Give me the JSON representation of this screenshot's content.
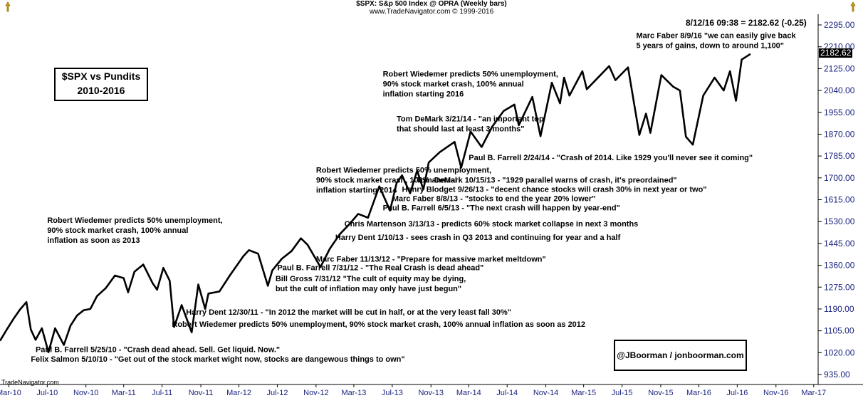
{
  "header": {
    "line1": "$SPX:  S&p 500 Index @ OPRA  (Weekly bars)",
    "line2": "www.TradeNavigator.com © 1999-2016"
  },
  "quote_line": "8/12/16 09:38 = 2182.62 (-0.25)",
  "title_box": {
    "line1": "$SPX vs Pundits",
    "line2": "2010-2016"
  },
  "credit": "@JBoorman / jonboorman.com",
  "footer": "TradeNavigator.com",
  "last_value_label": "2182.62",
  "chart_data": {
    "type": "line",
    "series": [
      {
        "x": [
          "2010-02-01",
          "2010-02-22",
          "2010-03-15",
          "2010-04-05",
          "2010-04-26",
          "2010-05-10",
          "2010-05-25",
          "2010-06-14",
          "2010-07-05",
          "2010-07-26",
          "2010-08-23",
          "2010-09-13",
          "2010-10-04",
          "2010-10-25",
          "2010-11-15",
          "2010-12-06",
          "2011-01-03",
          "2011-02-01",
          "2011-03-01",
          "2011-03-15",
          "2011-04-04",
          "2011-05-02",
          "2011-06-01",
          "2011-06-15",
          "2011-07-05",
          "2011-07-25",
          "2011-08-08",
          "2011-09-01",
          "2011-10-03",
          "2011-10-24",
          "2011-11-15",
          "2011-11-25",
          "2011-12-30",
          "2012-02-01",
          "2012-03-15",
          "2012-04-02",
          "2012-05-01",
          "2012-06-01",
          "2012-06-15",
          "2012-07-15",
          "2012-08-15",
          "2012-09-14",
          "2012-10-05",
          "2012-11-15",
          "2012-12-15",
          "2013-01-15",
          "2013-02-15",
          "2013-03-15",
          "2013-04-15",
          "2013-05-21",
          "2013-06-24",
          "2013-07-15",
          "2013-08-01",
          "2013-08-27",
          "2013-09-18",
          "2013-10-08",
          "2013-10-25",
          "2013-11-29",
          "2014-01-15",
          "2014-02-05",
          "2014-03-07",
          "2014-04-11",
          "2014-05-15",
          "2014-06-20",
          "2014-07-24",
          "2014-08-07",
          "2014-09-19",
          "2014-10-15",
          "2014-11-20",
          "2014-12-16",
          "2014-12-29",
          "2015-01-15",
          "2015-02-25",
          "2015-03-11",
          "2015-05-21",
          "2015-06-10",
          "2015-07-20",
          "2015-08-25",
          "2015-09-15",
          "2015-09-29",
          "2015-11-03",
          "2015-12-10",
          "2016-01-01",
          "2016-01-20",
          "2016-02-11",
          "2016-03-15",
          "2016-04-20",
          "2016-05-19",
          "2016-06-08",
          "2016-06-27",
          "2016-07-15",
          "2016-08-12"
        ],
        "y": [
          1066,
          1109,
          1150,
          1187,
          1217,
          1110,
          1070,
          1115,
          1022,
          1115,
          1050,
          1125,
          1165,
          1185,
          1190,
          1240,
          1271,
          1320,
          1310,
          1255,
          1335,
          1363,
          1290,
          1265,
          1350,
          1300,
          1120,
          1205,
          1099,
          1285,
          1190,
          1250,
          1258,
          1320,
          1395,
          1419,
          1405,
          1280,
          1340,
          1385,
          1415,
          1465,
          1440,
          1353,
          1425,
          1480,
          1520,
          1560,
          1545,
          1667,
          1573,
          1680,
          1710,
          1640,
          1728,
          1655,
          1760,
          1800,
          1840,
          1740,
          1880,
          1820,
          1900,
          1960,
          1985,
          1905,
          2015,
          1862,
          2070,
          1990,
          2090,
          2020,
          2115,
          2045,
          2135,
          2080,
          2130,
          1867,
          1950,
          1875,
          2100,
          2055,
          2040,
          1860,
          1829,
          2020,
          2090,
          2040,
          2115,
          2000,
          2160,
          2182
        ]
      }
    ],
    "xlim": [
      "2010-02-01",
      "2017-03-15"
    ],
    "ylim": [
      935,
      2295
    ],
    "y_ticks": [
      935,
      1020,
      1105,
      1190,
      1275,
      1360,
      1445,
      1530,
      1615,
      1700,
      1785,
      1870,
      1955,
      2040,
      2125,
      2210,
      2295
    ],
    "y_tick_labels": [
      "935.00",
      "1020.00",
      "1105.00",
      "1190.00",
      "1275.00",
      "1360.00",
      "1445.00",
      "1530.00",
      "1615.00",
      "1700.00",
      "1785.00",
      "1870.00",
      "1955.00",
      "2040.00",
      "2125.00",
      "2210.00",
      "2295.00"
    ],
    "x_ticks": [
      "2010-03-01",
      "2010-07-01",
      "2010-11-01",
      "2011-03-01",
      "2011-07-01",
      "2011-11-01",
      "2012-03-01",
      "2012-07-01",
      "2012-11-01",
      "2013-03-01",
      "2013-07-01",
      "2013-11-01",
      "2014-03-01",
      "2014-07-01",
      "2014-11-01",
      "2015-03-01",
      "2015-07-01",
      "2015-11-01",
      "2016-03-01",
      "2016-07-01",
      "2016-11-01",
      "2017-03-01"
    ],
    "x_tick_labels": [
      "Mar-10",
      "Jul-10",
      "Nov-10",
      "Mar-11",
      "Jul-11",
      "Nov-11",
      "Mar-12",
      "Jul-12",
      "Nov-12",
      "Mar-13",
      "Jul-13",
      "Nov-13",
      "Mar-14",
      "Jul-14",
      "Nov-14",
      "Mar-15",
      "Jul-15",
      "Nov-15",
      "Mar-16",
      "Jul-16",
      "Nov-16",
      "Mar-17"
    ],
    "grid": false,
    "annotations": [
      {
        "date": "2010-05-10",
        "value": 985,
        "lines": [
          "Felix Salmon 5/10/10 - \"Get out of the stock market wight now, stocks are dangewous things to own\""
        ]
      },
      {
        "date": "2010-05-25",
        "value": 1022,
        "lines": [
          "Paul B. Farrell 5/25/10 - \"Crash dead ahead. Sell. Get liquid. Now.\""
        ]
      },
      {
        "date": "2010-07-01",
        "value": 1525,
        "lines": [
          "Robert Wiedemer predicts 50% unemployment,",
          "90% stock market crash, 100% annual",
          "inflation as soon as 2013"
        ]
      },
      {
        "date": "2011-08-01",
        "value": 1121,
        "lines": [
          "Robert Wiedemer predicts 50% unemployment, 90% stock market crash, 100% annual inflation as soon as 2012"
        ]
      },
      {
        "date": "2011-09-15",
        "value": 1168,
        "lines": [
          "Harry Dent 12/30/11 - \"In 2012 the market will be cut in half, or at the very least fall 30%\""
        ]
      },
      {
        "date": "2012-06-25",
        "value": 1298,
        "lines": [
          "Bill Gross 7/31/12 \"The cult of equity may be dying,",
          "but the cult of inflation may only have just begun\""
        ]
      },
      {
        "date": "2012-07-01",
        "value": 1341,
        "lines": [
          "Paul B. Farrell 7/31/12 - \"The Real Crash is dead ahead\""
        ]
      },
      {
        "date": "2012-11-01",
        "value": 1374,
        "lines": [
          "Marc Faber 11/13/12 - \"Prepare for massive market meltdown\""
        ]
      },
      {
        "date": "2013-01-01",
        "value": 1459,
        "lines": [
          "Harry Dent  1/10/13 - sees crash in Q3 2013 and continuing for year and a half"
        ]
      },
      {
        "date": "2013-01-30",
        "value": 1511,
        "lines": [
          "Chris Martenson 3/13/13 - predicts 60% stock market collapse in next 3 months"
        ]
      },
      {
        "date": "2012-11-01",
        "value": 1720,
        "lines": [
          "Robert Wiedemer predicts 50% unemployment,",
          "90% stock market crash, 100% annual",
          "inflation starting 2014"
        ]
      },
      {
        "date": "2013-06-01",
        "value": 1573,
        "lines": [
          "Paul B. Farrell   6/5/13 - \"The next crash will happen by year-end\""
        ]
      },
      {
        "date": "2013-07-01",
        "value": 1609,
        "lines": [
          "Marc Faber 8/8/13 - \"stocks to end the year 20% lower\""
        ]
      },
      {
        "date": "2013-08-01",
        "value": 1645,
        "lines": [
          "Henry Blodget 9/26/13 - \"decent chance stocks will crash 30% in next year or two\""
        ]
      },
      {
        "date": "2013-09-15",
        "value": 1682,
        "lines": [
          "Tom DeMark 10/15/13 - \"1929 parallel warns of crash, it's preordained\""
        ]
      },
      {
        "date": "2014-03-01",
        "value": 1769,
        "lines": [
          "Paul B. Farrell 2/24/14 - \"Crash of 2014. Like 1929 you'll never see it coming\""
        ]
      },
      {
        "date": "2013-07-15",
        "value": 1919,
        "lines": [
          "Tom DeMark   3/21/14 - \"an important top",
          "that should last at least 3 months\""
        ]
      },
      {
        "date": "2013-06-01",
        "value": 2094,
        "lines": [
          "Robert Wiedemer predicts 50% unemployment,",
          "90% stock market crash, 100% annual",
          "inflation starting 2016"
        ]
      },
      {
        "date": "2015-08-15",
        "value": 2244,
        "lines": [
          "Marc Faber 8/9/16 \"we can easily give back",
          "5 years of gains, down to around 1,100\""
        ]
      }
    ]
  }
}
